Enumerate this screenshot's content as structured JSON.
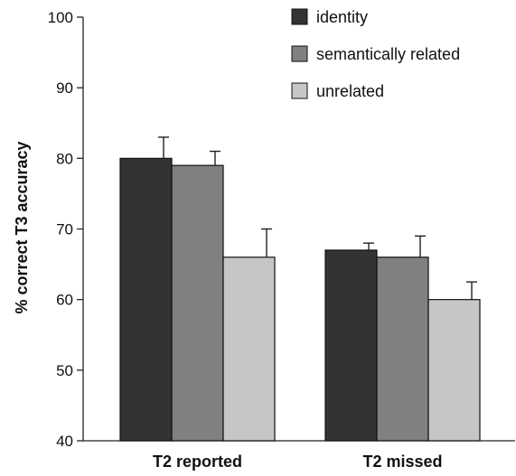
{
  "chart_data": {
    "type": "bar",
    "title": "",
    "xlabel": "",
    "ylabel": "% correct T3 accuracy",
    "ylim": [
      40,
      100
    ],
    "yticks": [
      40,
      50,
      60,
      70,
      80,
      90,
      100
    ],
    "categories": [
      "T2 reported",
      "T2 missed"
    ],
    "series": [
      {
        "name": "identity",
        "color": "#333333",
        "values": [
          80,
          67
        ],
        "errors": [
          3,
          1
        ]
      },
      {
        "name": "semantically related",
        "color": "#808080",
        "values": [
          79,
          66
        ],
        "errors": [
          2,
          3
        ]
      },
      {
        "name": "unrelated",
        "color": "#c6c6c6",
        "values": [
          66,
          60
        ],
        "errors": [
          4,
          2.5
        ]
      }
    ],
    "legend_position": "top-right",
    "grid": false
  }
}
